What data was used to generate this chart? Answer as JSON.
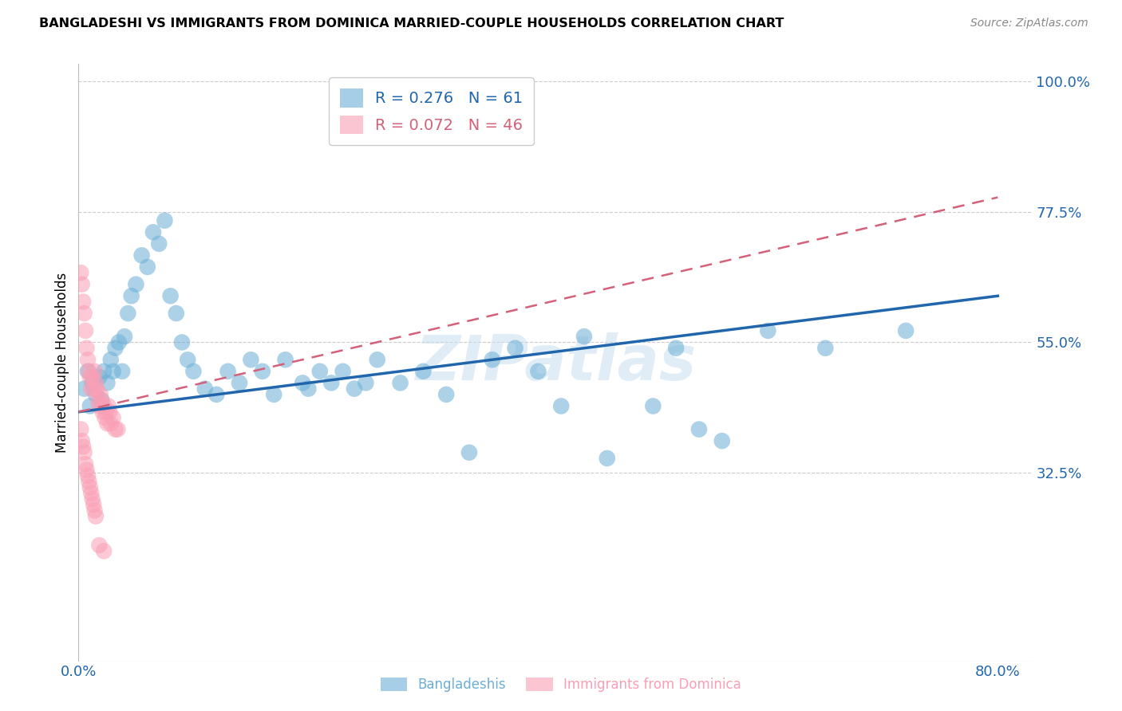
{
  "title": "BANGLADESHI VS IMMIGRANTS FROM DOMINICA MARRIED-COUPLE HOUSEHOLDS CORRELATION CHART",
  "source": "Source: ZipAtlas.com",
  "ylabel": "Married-couple Households",
  "xlabel_blue": "Bangladeshis",
  "xlabel_pink": "Immigrants from Dominica",
  "x_min": 0.0,
  "x_max": 0.8,
  "y_min": 0.0,
  "y_max": 1.0,
  "y_ticks": [
    0.325,
    0.55,
    0.775,
    1.0
  ],
  "y_tick_labels": [
    "32.5%",
    "55.0%",
    "77.5%",
    "100.0%"
  ],
  "x_tick_labels": [
    "0.0%",
    "80.0%"
  ],
  "x_ticks": [
    0.0,
    0.8
  ],
  "legend_blue_R": "0.276",
  "legend_blue_N": "61",
  "legend_pink_R": "0.072",
  "legend_pink_N": "46",
  "blue_color": "#6baed6",
  "pink_color": "#fa9fb5",
  "trend_blue_color": "#2166ac",
  "trend_pink_color": "#d4607a",
  "watermark": "ZIPatlas",
  "blue_x": [
    0.005,
    0.008,
    0.01,
    0.012,
    0.015,
    0.018,
    0.02,
    0.022,
    0.025,
    0.028,
    0.03,
    0.032,
    0.035,
    0.038,
    0.04,
    0.043,
    0.046,
    0.05,
    0.055,
    0.06,
    0.065,
    0.07,
    0.075,
    0.08,
    0.085,
    0.09,
    0.095,
    0.1,
    0.11,
    0.12,
    0.13,
    0.14,
    0.15,
    0.16,
    0.17,
    0.18,
    0.195,
    0.2,
    0.21,
    0.22,
    0.23,
    0.24,
    0.25,
    0.26,
    0.28,
    0.3,
    0.32,
    0.34,
    0.36,
    0.38,
    0.4,
    0.42,
    0.44,
    0.46,
    0.5,
    0.52,
    0.54,
    0.56,
    0.6,
    0.65,
    0.72
  ],
  "blue_y": [
    0.47,
    0.5,
    0.44,
    0.48,
    0.46,
    0.49,
    0.45,
    0.5,
    0.48,
    0.52,
    0.5,
    0.54,
    0.55,
    0.5,
    0.56,
    0.6,
    0.63,
    0.65,
    0.7,
    0.68,
    0.74,
    0.72,
    0.76,
    0.63,
    0.6,
    0.55,
    0.52,
    0.5,
    0.47,
    0.46,
    0.5,
    0.48,
    0.52,
    0.5,
    0.46,
    0.52,
    0.48,
    0.47,
    0.5,
    0.48,
    0.5,
    0.47,
    0.48,
    0.52,
    0.48,
    0.5,
    0.46,
    0.36,
    0.52,
    0.54,
    0.5,
    0.44,
    0.56,
    0.35,
    0.44,
    0.54,
    0.4,
    0.38,
    0.57,
    0.54,
    0.57
  ],
  "pink_x": [
    0.002,
    0.003,
    0.004,
    0.005,
    0.006,
    0.007,
    0.008,
    0.009,
    0.01,
    0.011,
    0.012,
    0.013,
    0.014,
    0.015,
    0.016,
    0.017,
    0.018,
    0.019,
    0.02,
    0.021,
    0.022,
    0.023,
    0.024,
    0.025,
    0.026,
    0.027,
    0.028,
    0.03,
    0.032,
    0.034,
    0.002,
    0.003,
    0.004,
    0.005,
    0.006,
    0.007,
    0.008,
    0.009,
    0.01,
    0.011,
    0.012,
    0.013,
    0.014,
    0.015,
    0.018,
    0.022
  ],
  "pink_y": [
    0.67,
    0.65,
    0.62,
    0.6,
    0.57,
    0.54,
    0.52,
    0.5,
    0.49,
    0.47,
    0.49,
    0.47,
    0.5,
    0.48,
    0.47,
    0.45,
    0.44,
    0.46,
    0.45,
    0.43,
    0.44,
    0.42,
    0.43,
    0.41,
    0.44,
    0.43,
    0.41,
    0.42,
    0.4,
    0.4,
    0.4,
    0.38,
    0.37,
    0.36,
    0.34,
    0.33,
    0.32,
    0.31,
    0.3,
    0.29,
    0.28,
    0.27,
    0.26,
    0.25,
    0.2,
    0.19
  ]
}
